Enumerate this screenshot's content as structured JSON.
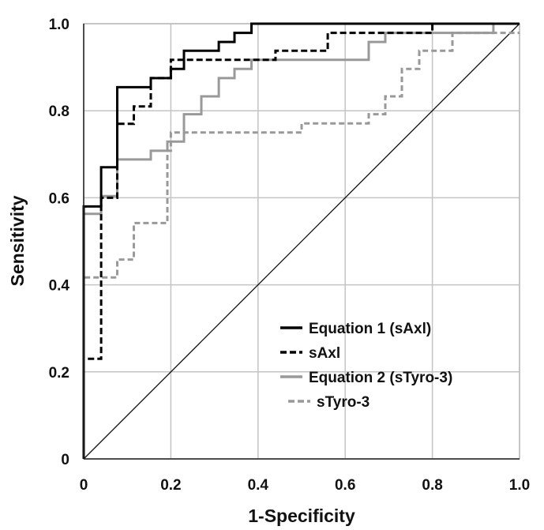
{
  "chart_data": {
    "type": "line",
    "title": "",
    "xlabel": "1-Specificity",
    "ylabel": "Sensitivity",
    "xlim": [
      0,
      1
    ],
    "ylim": [
      0,
      1
    ],
    "x_ticks": [
      "0",
      "0.2",
      "0.4",
      "0.6",
      "0.8",
      "1.0"
    ],
    "y_ticks": [
      "0",
      "0.2",
      "0.4",
      "0.6",
      "0.8",
      "1.0"
    ],
    "grid": true,
    "legend_position": "bottom-right",
    "reference_line": {
      "from": [
        0,
        0
      ],
      "to": [
        1,
        1
      ],
      "color": "#111111"
    },
    "series": [
      {
        "name": "Equation 1 (sAxl)",
        "color": "#000000",
        "dash": "solid",
        "points": [
          [
            0,
            0
          ],
          [
            0,
            0.58
          ],
          [
            0.04,
            0.58
          ],
          [
            0.04,
            0.67
          ],
          [
            0.077,
            0.67
          ],
          [
            0.077,
            0.854
          ],
          [
            0.154,
            0.854
          ],
          [
            0.154,
            0.875
          ],
          [
            0.2,
            0.875
          ],
          [
            0.2,
            0.896
          ],
          [
            0.23,
            0.896
          ],
          [
            0.23,
            0.938
          ],
          [
            0.31,
            0.938
          ],
          [
            0.31,
            0.958
          ],
          [
            0.346,
            0.958
          ],
          [
            0.346,
            0.979
          ],
          [
            0.385,
            0.979
          ],
          [
            0.385,
            1.0
          ],
          [
            1,
            1
          ]
        ]
      },
      {
        "name": "sAxl",
        "color": "#000000",
        "dash": "dashed",
        "points": [
          [
            0,
            0
          ],
          [
            0,
            0.23
          ],
          [
            0.04,
            0.23
          ],
          [
            0.04,
            0.6
          ],
          [
            0.077,
            0.6
          ],
          [
            0.077,
            0.77
          ],
          [
            0.115,
            0.77
          ],
          [
            0.115,
            0.81
          ],
          [
            0.154,
            0.81
          ],
          [
            0.154,
            0.875
          ],
          [
            0.2,
            0.875
          ],
          [
            0.2,
            0.917
          ],
          [
            0.44,
            0.917
          ],
          [
            0.44,
            0.938
          ],
          [
            0.56,
            0.938
          ],
          [
            0.56,
            0.979
          ],
          [
            0.8,
            0.979
          ],
          [
            0.8,
            1.0
          ],
          [
            1,
            1
          ]
        ]
      },
      {
        "name": "Equation 2 (sTyro-3)",
        "color": "#999999",
        "dash": "solid",
        "points": [
          [
            0,
            0
          ],
          [
            0,
            0.563
          ],
          [
            0.04,
            0.563
          ],
          [
            0.04,
            0.604
          ],
          [
            0.077,
            0.604
          ],
          [
            0.077,
            0.688
          ],
          [
            0.154,
            0.688
          ],
          [
            0.154,
            0.708
          ],
          [
            0.192,
            0.708
          ],
          [
            0.192,
            0.729
          ],
          [
            0.23,
            0.729
          ],
          [
            0.23,
            0.792
          ],
          [
            0.27,
            0.792
          ],
          [
            0.27,
            0.833
          ],
          [
            0.31,
            0.833
          ],
          [
            0.31,
            0.875
          ],
          [
            0.346,
            0.875
          ],
          [
            0.346,
            0.896
          ],
          [
            0.385,
            0.896
          ],
          [
            0.385,
            0.917
          ],
          [
            0.654,
            0.917
          ],
          [
            0.654,
            0.958
          ],
          [
            0.692,
            0.958
          ],
          [
            0.692,
            0.979
          ],
          [
            0.94,
            0.979
          ],
          [
            0.94,
            1.0
          ],
          [
            1,
            1
          ]
        ]
      },
      {
        "name": "sTyro-3",
        "color": "#999999",
        "dash": "dashed",
        "points": [
          [
            0,
            0
          ],
          [
            0,
            0.417
          ],
          [
            0.077,
            0.417
          ],
          [
            0.077,
            0.458
          ],
          [
            0.115,
            0.458
          ],
          [
            0.115,
            0.542
          ],
          [
            0.192,
            0.542
          ],
          [
            0.192,
            0.708
          ],
          [
            0.2,
            0.708
          ],
          [
            0.2,
            0.75
          ],
          [
            0.385,
            0.75
          ],
          [
            0.385,
            0.75
          ],
          [
            0.5,
            0.75
          ],
          [
            0.5,
            0.771
          ],
          [
            0.654,
            0.771
          ],
          [
            0.654,
            0.792
          ],
          [
            0.692,
            0.792
          ],
          [
            0.692,
            0.833
          ],
          [
            0.73,
            0.833
          ],
          [
            0.73,
            0.896
          ],
          [
            0.77,
            0.896
          ],
          [
            0.77,
            0.938
          ],
          [
            0.846,
            0.938
          ],
          [
            0.846,
            0.979
          ],
          [
            1,
            0.979
          ]
        ]
      }
    ]
  }
}
